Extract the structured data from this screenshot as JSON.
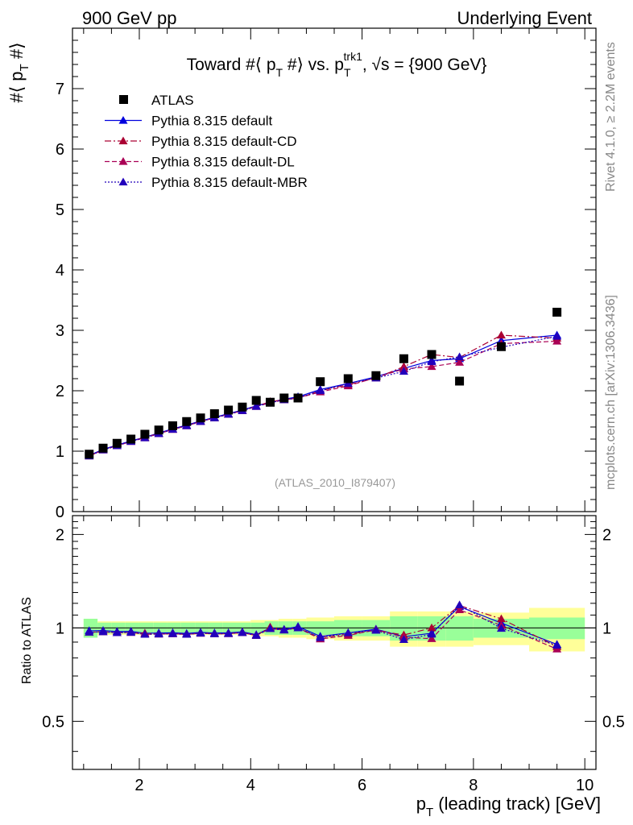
{
  "header": {
    "left": "900 GeV pp",
    "right": "Underlying Event"
  },
  "side_labels": {
    "rivet": "Rivet 4.1.0, ≥ 2.2M events",
    "mcplots": "mcplots.cern.ch [arXiv:1306.3436]"
  },
  "chart_data": {
    "type": "line",
    "title": "Toward #⟨ p_T #⟩ vs. p_T^trk1, √s = {900 GeV}",
    "title_parts": {
      "a": "Toward #⟨ p",
      "a_sub": "T",
      "b": " #⟩ vs. p",
      "b_sub": "T",
      "b_sup": "trk1",
      "c": ", √s = {900 GeV}"
    },
    "analysis_tag": "(ATLAS_2010_I879407)",
    "ylabel_parts": {
      "a": "#⟨ p",
      "sub": "T",
      "b": " #⟩"
    },
    "xlabel_parts": {
      "a": "p",
      "sub": "T",
      "b": " (leading track) [GeV]"
    },
    "ratio_ylabel": "Ratio to ATLAS",
    "xlim": [
      0.8,
      10.2
    ],
    "ylim": [
      0,
      8
    ],
    "ratio_ylim": [
      0.35,
      2.3
    ],
    "x_ticks": [
      2,
      4,
      6,
      8,
      10
    ],
    "y_ticks": [
      0,
      1,
      2,
      3,
      4,
      5,
      6,
      7
    ],
    "ratio_ticks": [
      0.5,
      1,
      2
    ],
    "ratio_ticks_right": [
      0.5,
      1,
      2
    ],
    "x": [
      1.1,
      1.35,
      1.6,
      1.85,
      2.1,
      2.35,
      2.6,
      2.85,
      3.1,
      3.35,
      3.6,
      3.85,
      4.1,
      4.35,
      4.6,
      4.85,
      5.25,
      5.75,
      6.25,
      6.75,
      7.25,
      7.75,
      8.5,
      9.5
    ],
    "x_edges": [
      1.0,
      1.25,
      1.5,
      1.75,
      2.0,
      2.25,
      2.5,
      2.75,
      3.0,
      3.25,
      3.5,
      3.75,
      4.0,
      4.25,
      4.5,
      4.75,
      5.0,
      5.5,
      6.0,
      6.5,
      7.0,
      7.5,
      8.0,
      9.0,
      10.0
    ],
    "data": {
      "name": "ATLAS",
      "values": [
        0.95,
        1.05,
        1.13,
        1.2,
        1.28,
        1.35,
        1.42,
        1.49,
        1.55,
        1.62,
        1.68,
        1.73,
        1.84,
        1.81,
        1.88,
        1.88,
        2.15,
        2.2,
        2.25,
        2.53,
        2.6,
        2.16,
        2.73,
        3.3
      ],
      "stat_band": [
        0.07,
        0.04,
        0.04,
        0.04,
        0.04,
        0.04,
        0.04,
        0.04,
        0.04,
        0.04,
        0.04,
        0.04,
        0.04,
        0.05,
        0.05,
        0.05,
        0.05,
        0.06,
        0.06,
        0.09,
        0.09,
        0.09,
        0.07,
        0.08
      ],
      "total_band": [
        0.07,
        0.05,
        0.05,
        0.05,
        0.05,
        0.05,
        0.05,
        0.05,
        0.05,
        0.05,
        0.05,
        0.05,
        0.06,
        0.06,
        0.07,
        0.07,
        0.08,
        0.09,
        0.09,
        0.13,
        0.13,
        0.13,
        0.12,
        0.16
      ]
    },
    "series": [
      {
        "name": "Pythia 8.315 default",
        "color": "#0000dd",
        "dash": "",
        "values": [
          0.93,
          1.03,
          1.1,
          1.17,
          1.23,
          1.3,
          1.37,
          1.43,
          1.5,
          1.56,
          1.62,
          1.68,
          1.75,
          1.81,
          1.86,
          1.9,
          2.02,
          2.12,
          2.23,
          2.37,
          2.5,
          2.53,
          2.83,
          2.92
        ]
      },
      {
        "name": "Pythia 8.315 default-CD",
        "color": "#aa0033",
        "dash": "8,3,2,3",
        "values": [
          0.92,
          1.02,
          1.09,
          1.16,
          1.23,
          1.29,
          1.36,
          1.42,
          1.49,
          1.55,
          1.61,
          1.67,
          1.74,
          1.82,
          1.85,
          1.88,
          2.0,
          2.1,
          2.21,
          2.4,
          2.6,
          2.55,
          2.92,
          2.87
        ]
      },
      {
        "name": "Pythia 8.315 default-DL",
        "color": "#aa0055",
        "dash": "6,3",
        "values": [
          0.92,
          1.02,
          1.09,
          1.16,
          1.22,
          1.29,
          1.36,
          1.42,
          1.49,
          1.55,
          1.61,
          1.67,
          1.74,
          1.8,
          1.85,
          1.88,
          1.98,
          2.08,
          2.22,
          2.36,
          2.4,
          2.47,
          2.78,
          2.82
        ]
      },
      {
        "name": "Pythia 8.315 default-MBR",
        "color": "#2200bb",
        "dash": "2,2",
        "values": [
          0.92,
          1.02,
          1.09,
          1.16,
          1.22,
          1.29,
          1.36,
          1.42,
          1.49,
          1.55,
          1.61,
          1.67,
          1.74,
          1.8,
          1.85,
          1.88,
          2.0,
          2.12,
          2.21,
          2.32,
          2.48,
          2.56,
          2.72,
          2.9
        ]
      }
    ]
  }
}
